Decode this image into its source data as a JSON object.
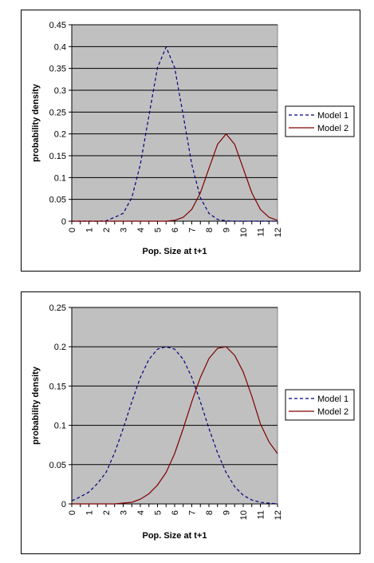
{
  "chart_data": [
    {
      "type": "line",
      "xlabel": "Pop. Size at t+1",
      "ylabel": "probability density",
      "xlim": [
        0,
        12
      ],
      "ylim": [
        0,
        0.45
      ],
      "x_ticks": [
        "0",
        "0.5",
        "1",
        "1.5",
        "2",
        "2.5",
        "3",
        "3.5",
        "4",
        "4.5",
        "5",
        "5.5",
        "6",
        "6.5",
        "7",
        "7.5",
        "8",
        "8.5",
        "9",
        "9.5",
        "10",
        "10.5",
        "11",
        "11.5",
        "12"
      ],
      "x_tick_labels": [
        "0",
        "1",
        "2",
        "3",
        "4",
        "5",
        "6",
        "7",
        "8",
        "9",
        "10",
        "11",
        "12"
      ],
      "y_ticks": [
        "0",
        "0.05",
        "0.1",
        "0.15",
        "0.2",
        "0.25",
        "0.3",
        "0.35",
        "0.4",
        "0.45"
      ],
      "grid": true,
      "plot_bg": "#C0C0C0",
      "legend_position": "right",
      "x": [
        0,
        0.5,
        1,
        1.5,
        2,
        2.5,
        3,
        3.5,
        4,
        4.5,
        5,
        5.5,
        6,
        6.5,
        7,
        7.5,
        8,
        8.5,
        9,
        9.5,
        10,
        10.5,
        11,
        11.5,
        12
      ],
      "series": [
        {
          "name": "Model 1",
          "color": "#000080",
          "dash": "dashed",
          "values": [
            0,
            0,
            0,
            0,
            0.001,
            0.009,
            0.018,
            0.054,
            0.13,
            0.242,
            0.352,
            0.399,
            0.352,
            0.242,
            0.13,
            0.054,
            0.018,
            0.004,
            0.001,
            0,
            0,
            0,
            0,
            0,
            0
          ]
        },
        {
          "name": "Model 2",
          "color": "#800000",
          "dash": "solid",
          "values": [
            0,
            0,
            0,
            0,
            0,
            0,
            0,
            0,
            0,
            0,
            0,
            0,
            0.002,
            0.009,
            0.027,
            0.065,
            0.121,
            0.176,
            0.2,
            0.176,
            0.121,
            0.065,
            0.027,
            0.009,
            0.002
          ]
        }
      ]
    },
    {
      "type": "line",
      "xlabel": "Pop.  Size at t+1",
      "ylabel": "probability density",
      "xlim": [
        0,
        12
      ],
      "ylim": [
        0,
        0.25
      ],
      "x_ticks": [
        "0",
        "0.5",
        "1",
        "1.5",
        "2",
        "2.5",
        "3",
        "3.5",
        "4",
        "4.5",
        "5",
        "5.5",
        "6",
        "6.5",
        "7",
        "7.5",
        "8",
        "8.5",
        "9",
        "9.5",
        "10",
        "10.5",
        "11",
        "11.5",
        "12"
      ],
      "x_tick_labels": [
        "0",
        "1",
        "2",
        "3",
        "4",
        "5",
        "6",
        "7",
        "8",
        "9",
        "10",
        "11",
        "12"
      ],
      "y_ticks": [
        "0",
        "0.05",
        "0.1",
        "0.15",
        "0.2",
        "0.25"
      ],
      "grid": true,
      "plot_bg": "#C0C0C0",
      "legend_position": "right",
      "x": [
        0,
        0.5,
        1,
        1.5,
        2,
        2.5,
        3,
        3.5,
        4,
        4.5,
        5,
        5.5,
        6,
        6.5,
        7,
        7.5,
        8,
        8.5,
        9,
        9.5,
        10,
        10.5,
        11,
        11.5,
        12
      ],
      "series": [
        {
          "name": "Model 1",
          "color": "#000080",
          "dash": "dashed",
          "values": [
            0.004,
            0.009,
            0.015,
            0.026,
            0.04,
            0.065,
            0.096,
            0.13,
            0.161,
            0.184,
            0.197,
            0.2,
            0.197,
            0.184,
            0.161,
            0.13,
            0.096,
            0.065,
            0.04,
            0.022,
            0.011,
            0.005,
            0.002,
            0.001,
            0
          ]
        },
        {
          "name": "Model 2",
          "color": "#800000",
          "dash": "solid",
          "values": [
            0,
            0,
            0,
            0,
            0,
            0,
            0.001,
            0.002,
            0.006,
            0.013,
            0.024,
            0.04,
            0.064,
            0.096,
            0.13,
            0.161,
            0.185,
            0.198,
            0.2,
            0.189,
            0.168,
            0.137,
            0.102,
            0.079,
            0.064
          ]
        }
      ]
    }
  ]
}
